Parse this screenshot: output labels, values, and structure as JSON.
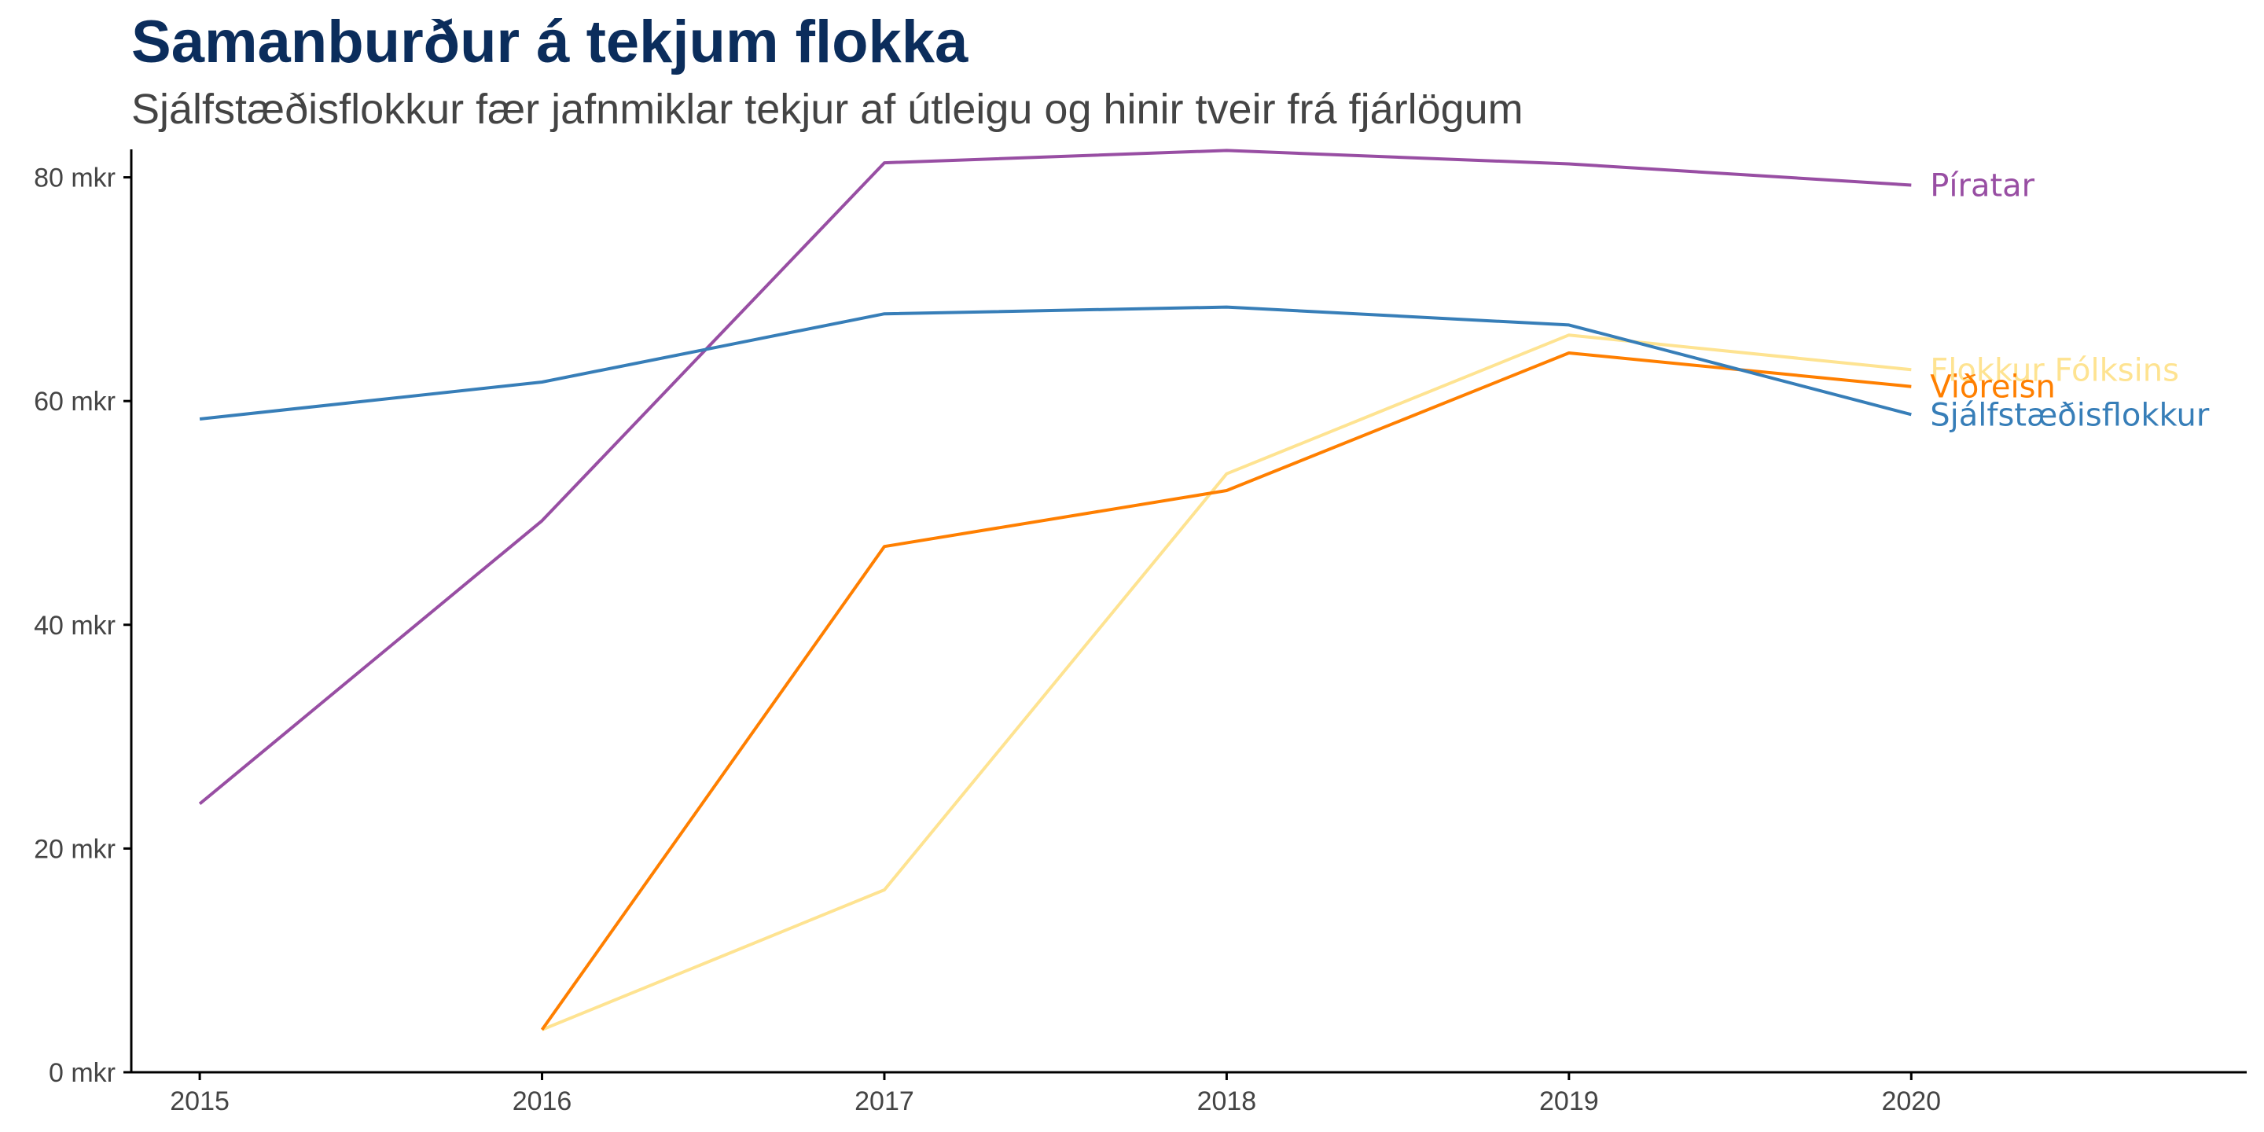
{
  "chart_data": {
    "type": "line",
    "title": "Samanburður á tekjum flokka",
    "subtitle": "Sjálfstæðisflokkur fær jafnmiklar tekjur af útleigu og hinir tveir frá fjárlögum",
    "xlabel": "",
    "ylabel": "",
    "x": [
      2015,
      2016,
      2017,
      2018,
      2019,
      2020
    ],
    "x_tick_labels": [
      "2015",
      "2016",
      "2017",
      "2018",
      "2019",
      "2020"
    ],
    "y_ticks": [
      0,
      20,
      40,
      60,
      80
    ],
    "y_tick_labels": [
      "0 mkr",
      "20 mkr",
      "40 mkr",
      "60 mkr",
      "80 mkr"
    ],
    "ylim": [
      0,
      82.5
    ],
    "xlim": [
      2014.8,
      2020.98
    ],
    "grid": false,
    "legend": "direct labels at line ends",
    "series": [
      {
        "name": "Píratar",
        "color": "#984ea3",
        "values": [
          24.0,
          49.3,
          81.3,
          82.4,
          81.2,
          79.3
        ]
      },
      {
        "name": "Flokkur Fólksins",
        "color": "#fee391",
        "values": [
          null,
          3.8,
          16.3,
          53.5,
          65.9,
          62.8
        ]
      },
      {
        "name": "Viðreisn",
        "color": "#ff7f00",
        "values": [
          null,
          3.8,
          47.0,
          52.0,
          64.3,
          61.3
        ]
      },
      {
        "name": "Sjálfstæðisflokkur",
        "color": "#377eb8",
        "values": [
          58.4,
          61.7,
          67.8,
          68.4,
          66.8,
          58.8
        ]
      }
    ]
  }
}
